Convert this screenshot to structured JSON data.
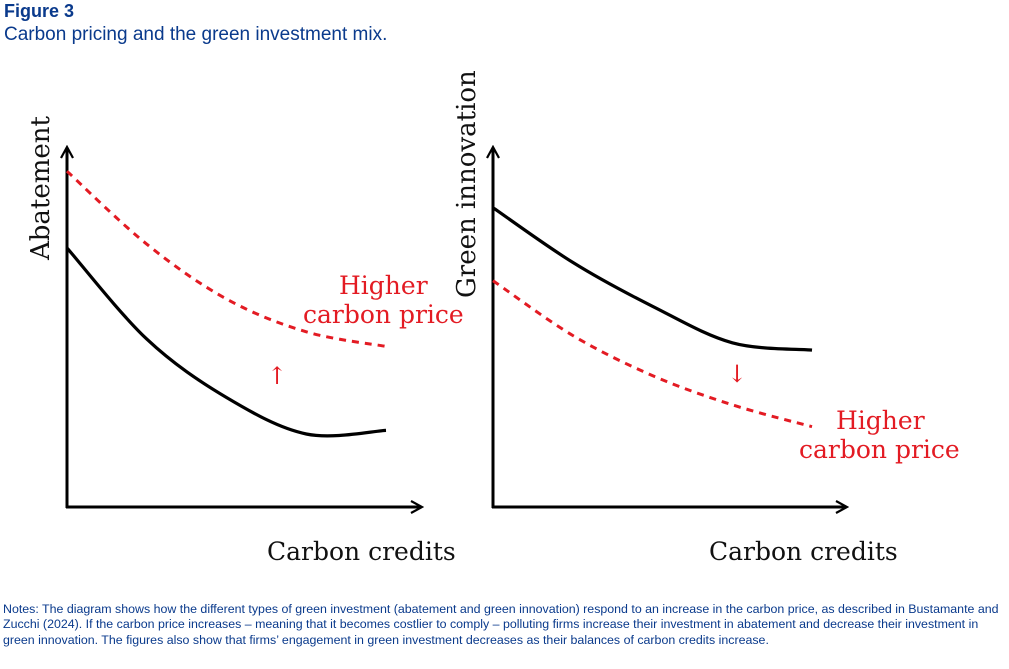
{
  "figure": {
    "label": "Figure 3",
    "title": "Carbon pricing and the green investment mix.",
    "notes": "Notes: The diagram shows how the different types of green investment (abatement and green innovation) respond to an increase in the carbon price, as described in Bustamante and Zucchi (2024). If the carbon price increases – meaning that it becomes costlier to comply – polluting firms increase their investment in abatement and decrease their investment in green innovation. The figures also show that firms’ engagement in green investment decreases as their balances of carbon credits increase."
  },
  "colors": {
    "text_blue": "#0a3a8c",
    "curve": "#000000",
    "shifted": "#e31b23"
  },
  "chart_data": [
    {
      "type": "line",
      "xlabel": "Carbon credits",
      "ylabel": "Abatement",
      "xlim": [
        0,
        1
      ],
      "ylim": [
        0,
        1
      ],
      "series": [
        {
          "style": "solid",
          "x": [
            0,
            0.25,
            0.5,
            0.75,
            1.0
          ],
          "y": [
            0.71,
            0.46,
            0.3,
            0.2,
            0.21
          ]
        },
        {
          "style": "dashed",
          "x": [
            0,
            0.25,
            0.5,
            0.75,
            1.0
          ],
          "y": [
            0.92,
            0.72,
            0.57,
            0.48,
            0.44
          ]
        }
      ],
      "annotation": {
        "line1": "Higher",
        "line2": "carbon price",
        "arrow": "↑",
        "direction": "up"
      }
    },
    {
      "type": "line",
      "xlabel": "Carbon credits",
      "ylabel": "Green innovation",
      "xlim": [
        0,
        1
      ],
      "ylim": [
        0,
        1
      ],
      "series": [
        {
          "style": "solid",
          "x": [
            0,
            0.25,
            0.5,
            0.75,
            1.0
          ],
          "y": [
            0.82,
            0.67,
            0.55,
            0.45,
            0.43
          ]
        },
        {
          "style": "dashed",
          "x": [
            0,
            0.25,
            0.5,
            0.75,
            1.0
          ],
          "y": [
            0.62,
            0.47,
            0.36,
            0.28,
            0.22
          ]
        }
      ],
      "annotation": {
        "line1": "Higher",
        "line2": "carbon price",
        "arrow": "↓",
        "direction": "down"
      }
    }
  ]
}
